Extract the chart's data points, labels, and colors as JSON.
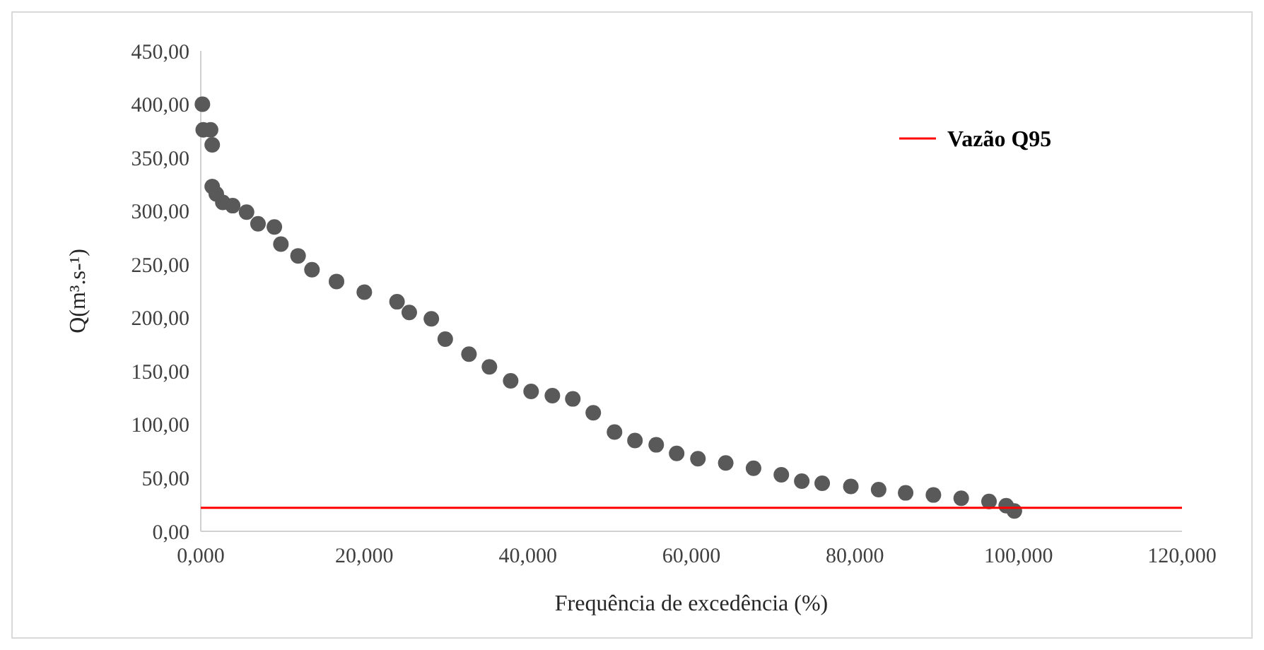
{
  "chart_data": {
    "type": "scatter",
    "xlabel": "Frequência de excedência (%)",
    "ylabel": "Q(m³.s-¹)",
    "xlim": [
      0,
      120
    ],
    "ylim": [
      0,
      450
    ],
    "xticks": [
      {
        "value": 0,
        "label": "0,000"
      },
      {
        "value": 20,
        "label": "20,000"
      },
      {
        "value": 40,
        "label": "40,000"
      },
      {
        "value": 60,
        "label": "60,000"
      },
      {
        "value": 80,
        "label": "80,000"
      },
      {
        "value": 100,
        "label": "100,000"
      },
      {
        "value": 120,
        "label": "120,000"
      }
    ],
    "yticks": [
      {
        "value": 0,
        "label": "0,00"
      },
      {
        "value": 50,
        "label": "50,00"
      },
      {
        "value": 100,
        "label": "100,00"
      },
      {
        "value": 150,
        "label": "150,00"
      },
      {
        "value": 200,
        "label": "200,00"
      },
      {
        "value": 250,
        "label": "250,00"
      },
      {
        "value": 300,
        "label": "300,00"
      },
      {
        "value": 350,
        "label": "350,00"
      },
      {
        "value": 400,
        "label": "400,00"
      },
      {
        "value": 450,
        "label": "450,00"
      }
    ],
    "grid": false,
    "legend": "right",
    "marker": "circle",
    "series": [
      {
        "type": "scatter",
        "color": "#595959",
        "x": [
          0.2,
          0.3,
          1.2,
          1.4,
          1.4,
          1.9,
          2.7,
          3.9,
          5.6,
          7,
          9,
          9.8,
          11.9,
          13.6,
          16.6,
          20,
          24,
          25.5,
          28.2,
          29.9,
          32.8,
          35.3,
          37.9,
          40.4,
          43,
          45.5,
          48,
          50.6,
          53.1,
          55.7,
          58.2,
          60.8,
          64.2,
          67.6,
          71,
          73.5,
          76,
          79.5,
          82.9,
          86.2,
          89.6,
          93,
          96.4,
          98.5,
          99.5
        ],
        "values": [
          400,
          376,
          376,
          362,
          323,
          316,
          308,
          305,
          299,
          288,
          285,
          269,
          258,
          245,
          234,
          224,
          215,
          205,
          199,
          180,
          166,
          154,
          141,
          131,
          127,
          124,
          111,
          93,
          85,
          81,
          73,
          68,
          64,
          59,
          53,
          47,
          45,
          42,
          39,
          36,
          34,
          31,
          28,
          24,
          19
        ]
      },
      {
        "type": "line",
        "name": "Vazão Q95",
        "color": "#ff0000",
        "marker": "none",
        "x": [
          0,
          120
        ],
        "values": [
          22,
          22
        ]
      }
    ]
  }
}
